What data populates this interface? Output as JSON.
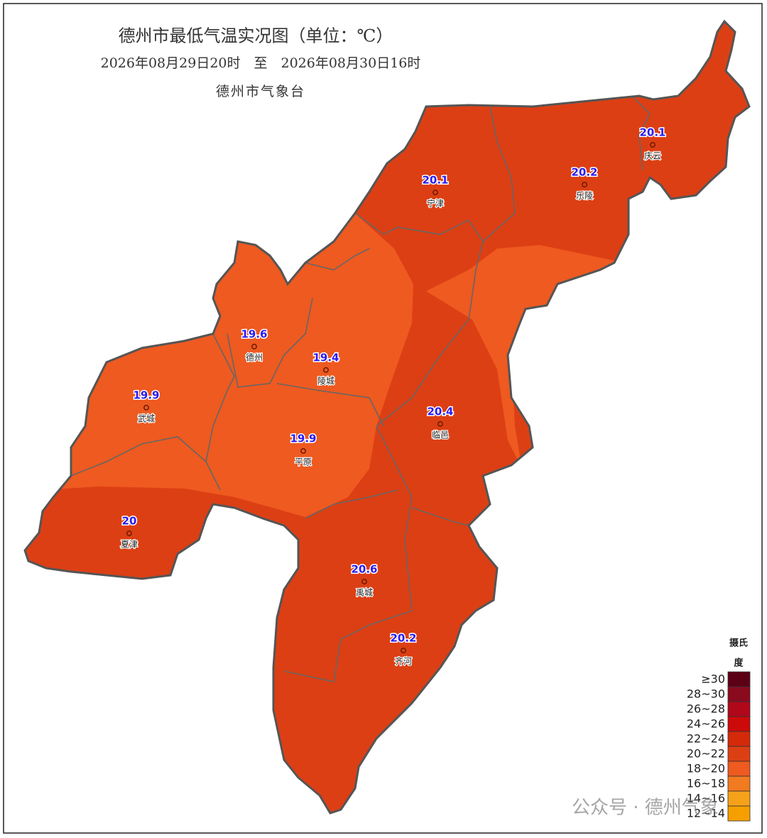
{
  "header": {
    "title": "德州市最低气温实况图（单位：℃）",
    "period": "2026年08月29日20时　至　2026年08月30日16时",
    "issuer": "德州市气象台"
  },
  "stations": [
    {
      "name": "庆云",
      "value": 20.1
    },
    {
      "name": "乐陵",
      "value": 20.2
    },
    {
      "name": "宁津",
      "value": 20.1
    },
    {
      "name": "德州",
      "value": 19.6
    },
    {
      "name": "陵城",
      "value": 19.4
    },
    {
      "name": "武城",
      "value": 19.9
    },
    {
      "name": "平原",
      "value": 19.9
    },
    {
      "name": "临邑",
      "value": 20.4
    },
    {
      "name": "夏津",
      "value": 20
    },
    {
      "name": "禹城",
      "value": 20.6
    },
    {
      "name": "齐河",
      "value": 20.2
    }
  ],
  "legend": {
    "title": [
      "摄氏",
      "度"
    ],
    "items": [
      {
        "label": "≥30",
        "color": "#5c0015"
      },
      {
        "label": "28~30",
        "color": "#8a0a1e"
      },
      {
        "label": "26~28",
        "color": "#b0081a"
      },
      {
        "label": "24~26",
        "color": "#cc0a0a"
      },
      {
        "label": "22~24",
        "color": "#d42a0a"
      },
      {
        "label": "20~22",
        "color": "#dd3f14"
      },
      {
        "label": "18~20",
        "color": "#ee5a20"
      },
      {
        "label": "16~18",
        "color": "#f27a20"
      },
      {
        "label": "14~16",
        "color": "#f5a21a"
      },
      {
        "label": "12~14",
        "color": "#f5a000"
      }
    ]
  },
  "watermark": "公众号 · 德州气象"
}
